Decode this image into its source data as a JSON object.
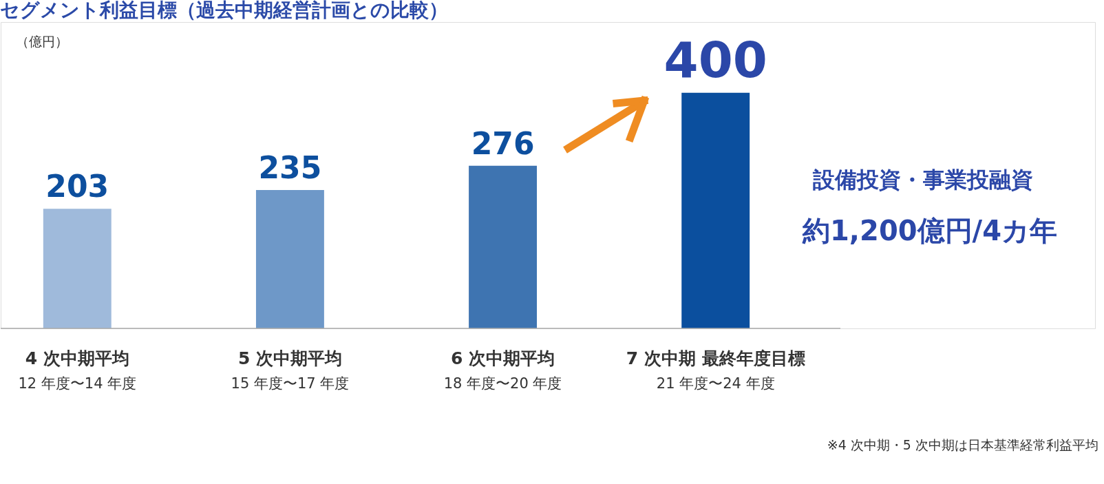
{
  "chart_data": {
    "type": "bar",
    "title": "セグメント利益目標（過去中期経営計画との比較）",
    "ylabel": "（億円）",
    "categories": [
      "4 次中期平均\n12 年度〜14 年度",
      "5 次中期平均\n15 年度〜17 年度",
      "6 次中期平均\n18 年度〜20 年度",
      "7 次中期 最終年度目標\n21 年度〜24 年度"
    ],
    "values": [
      203,
      235,
      276,
      400
    ],
    "colors": [
      "#9fbadb",
      "#6e98c8",
      "#3e74b1",
      "#0b4f9e"
    ],
    "data_labels": true,
    "annotations": [
      "設備投資・事業投融資",
      "約1,200億円/4カ年",
      "※4 次中期・5 次中期は日本基準経常利益平均"
    ]
  }
}
